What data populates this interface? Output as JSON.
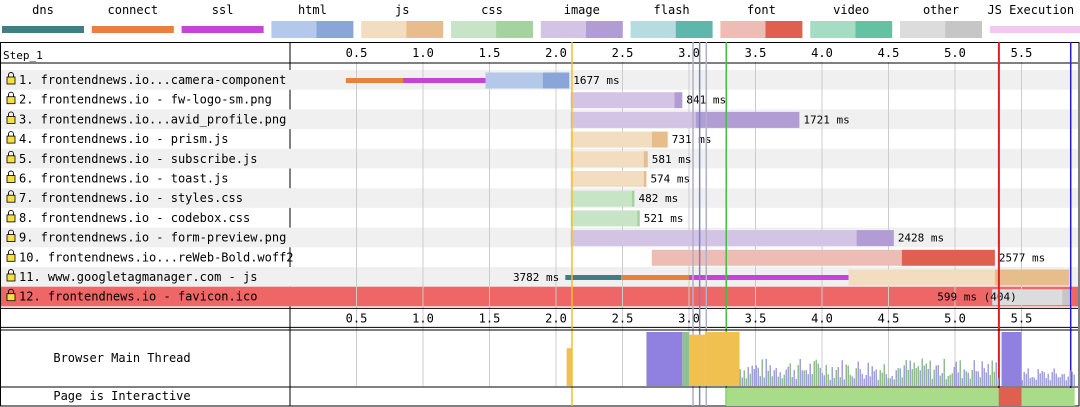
{
  "chart_data": {
    "type": "waterfall",
    "step_label": "Step_1",
    "legend": [
      {
        "label": "dns",
        "color": "#3f7f83",
        "style": "solid"
      },
      {
        "label": "connect",
        "color": "#e9803f",
        "style": "solid"
      },
      {
        "label": "ssl",
        "color": "#c643d8",
        "style": "solid"
      },
      {
        "label": "html",
        "color": "#b4c9e9",
        "dark": "#8aa6d8",
        "style": "split"
      },
      {
        "label": "js",
        "color": "#f2ddc1",
        "dark": "#e7bd8c",
        "style": "split"
      },
      {
        "label": "css",
        "color": "#c8e4c6",
        "dark": "#a4d3a0",
        "style": "split"
      },
      {
        "label": "image",
        "color": "#d3c4e6",
        "dark": "#b29cd4",
        "style": "split"
      },
      {
        "label": "flash",
        "color": "#b6dcdf",
        "dark": "#5db7ab",
        "style": "split"
      },
      {
        "label": "font",
        "color": "#edbcb4",
        "dark": "#e06050",
        "style": "split"
      },
      {
        "label": "video",
        "color": "#a6dcc4",
        "dark": "#62c2a2",
        "style": "split"
      },
      {
        "label": "other",
        "color": "#dcdcdc",
        "dark": "#c6c6c6",
        "style": "split"
      },
      {
        "label": "JS Execution",
        "color": "#f2c8f0",
        "style": "thin"
      }
    ],
    "x_ticks": [
      0.5,
      1.0,
      1.5,
      2.0,
      2.5,
      3.0,
      3.5,
      4.0,
      4.5,
      5.0,
      5.5
    ],
    "x_range": [
      0,
      5.9
    ],
    "requests": [
      {
        "label": "1. frontendnews.io...camera-component",
        "start": 0.42,
        "duration_label": "1677 ms",
        "type": "html",
        "segments": [
          {
            "kind": "connect",
            "from": 0.42,
            "to": 0.85
          },
          {
            "kind": "ssl",
            "from": 0.85,
            "to": 1.47
          },
          {
            "kind": "wait",
            "from": 1.47,
            "to": 1.9
          },
          {
            "kind": "receive",
            "from": 1.9,
            "to": 2.1
          }
        ]
      },
      {
        "label": "2. frontendnews.io - fw-logo-sm.png",
        "start": 2.11,
        "duration_label": "841 ms",
        "type": "image",
        "segments": [
          {
            "kind": "wait",
            "from": 2.11,
            "to": 2.89
          },
          {
            "kind": "receive",
            "from": 2.89,
            "to": 2.95
          }
        ]
      },
      {
        "label": "3. frontendnews.io...avid_profile.png",
        "start": 2.11,
        "duration_label": "1721 ms",
        "type": "image",
        "segments": [
          {
            "kind": "wait",
            "from": 2.11,
            "to": 3.05
          },
          {
            "kind": "receive",
            "from": 3.05,
            "to": 3.83
          }
        ]
      },
      {
        "label": "4. frontendnews.io - prism.js",
        "start": 2.11,
        "duration_label": "731 ms",
        "type": "js",
        "segments": [
          {
            "kind": "wait",
            "from": 2.11,
            "to": 2.72
          },
          {
            "kind": "receive",
            "from": 2.72,
            "to": 2.84
          }
        ]
      },
      {
        "label": "5. frontendnews.io - subscribe.js",
        "start": 2.11,
        "duration_label": "581 ms",
        "type": "js",
        "segments": [
          {
            "kind": "wait",
            "from": 2.11,
            "to": 2.66
          },
          {
            "kind": "receive",
            "from": 2.66,
            "to": 2.69
          }
        ]
      },
      {
        "label": "6. frontendnews.io - toast.js",
        "start": 2.11,
        "duration_label": "574 ms",
        "type": "js",
        "segments": [
          {
            "kind": "wait",
            "from": 2.11,
            "to": 2.66
          },
          {
            "kind": "receive",
            "from": 2.66,
            "to": 2.68
          }
        ]
      },
      {
        "label": "7. frontendnews.io - styles.css",
        "start": 2.11,
        "duration_label": "482 ms",
        "type": "css",
        "segments": [
          {
            "kind": "wait",
            "from": 2.11,
            "to": 2.57
          },
          {
            "kind": "receive",
            "from": 2.57,
            "to": 2.59
          }
        ]
      },
      {
        "label": "8. frontendnews.io - codebox.css",
        "start": 2.11,
        "duration_label": "521 ms",
        "type": "css",
        "segments": [
          {
            "kind": "wait",
            "from": 2.11,
            "to": 2.61
          },
          {
            "kind": "receive",
            "from": 2.61,
            "to": 2.63
          }
        ]
      },
      {
        "label": "9. frontendnews.io - form-preview.png",
        "start": 2.11,
        "duration_label": "2428 ms",
        "type": "image",
        "segments": [
          {
            "kind": "wait",
            "from": 2.11,
            "to": 4.26
          },
          {
            "kind": "receive",
            "from": 4.26,
            "to": 4.54
          }
        ]
      },
      {
        "label": "10. frontendnews.io...reWeb-Bold.woff2",
        "start": 2.72,
        "duration_label": "2577 ms",
        "type": "font",
        "segments": [
          {
            "kind": "wait",
            "from": 2.72,
            "to": 4.6
          },
          {
            "kind": "receive",
            "from": 4.6,
            "to": 5.3
          }
        ]
      },
      {
        "label": "11. www.googletagmanager.com - js",
        "start": 2.07,
        "duration_label": "3782 ms",
        "type": "js",
        "segments": [
          {
            "kind": "dns",
            "from": 2.07,
            "to": 2.49
          },
          {
            "kind": "connect",
            "from": 2.49,
            "to": 3.0
          },
          {
            "kind": "ssl",
            "from": 3.0,
            "to": 4.2
          },
          {
            "kind": "wait",
            "from": 4.2,
            "to": 5.3
          },
          {
            "kind": "receive",
            "from": 5.3,
            "to": 5.86
          }
        ]
      },
      {
        "label": "12. frontendnews.io - favicon.ico",
        "start": 5.28,
        "duration_label": "599 ms (404)",
        "type": "other",
        "error": true,
        "segments": [
          {
            "kind": "wait",
            "from": 5.28,
            "to": 5.81
          },
          {
            "kind": "receive",
            "from": 5.81,
            "to": 5.88
          }
        ]
      }
    ],
    "markers": [
      {
        "time": 2.12,
        "color": "#f0c030"
      },
      {
        "time": 3.03,
        "color": "#b0b0c8"
      },
      {
        "time": 3.08,
        "color": "#8080c0"
      },
      {
        "time": 3.13,
        "color": "#b0b0c8"
      },
      {
        "time": 3.28,
        "color": "#40c040"
      },
      {
        "time": 5.33,
        "color": "#e02020"
      },
      {
        "time": 5.87,
        "color": "#2020d0"
      }
    ],
    "thread_label": "Browser Main Thread",
    "interactive_label": "Page is Interactive",
    "thread_blocks": [
      {
        "from": 0.0,
        "to": 2.08,
        "height": 0.0,
        "color": "#9090e0"
      },
      {
        "from": 2.08,
        "to": 2.12,
        "height": 0.7,
        "color": "#f0c050"
      },
      {
        "from": 2.68,
        "to": 2.95,
        "height": 1.0,
        "color": "#9080e0"
      },
      {
        "from": 2.95,
        "to": 3.0,
        "height": 1.0,
        "color": "#90c090"
      },
      {
        "from": 3.0,
        "to": 3.12,
        "height": 0.95,
        "color": "#f0c050"
      },
      {
        "from": 3.12,
        "to": 3.38,
        "height": 1.0,
        "color": "#f0c050"
      },
      {
        "from": 5.35,
        "to": 5.5,
        "height": 1.0,
        "color": "#9080e0"
      }
    ],
    "interactive_blocks": [
      {
        "from": 3.28,
        "to": 5.33,
        "color": "#a8dc88"
      },
      {
        "from": 5.33,
        "to": 5.5,
        "color": "#e06050"
      },
      {
        "from": 5.5,
        "to": 5.9,
        "color": "#a8dc88"
      }
    ]
  }
}
